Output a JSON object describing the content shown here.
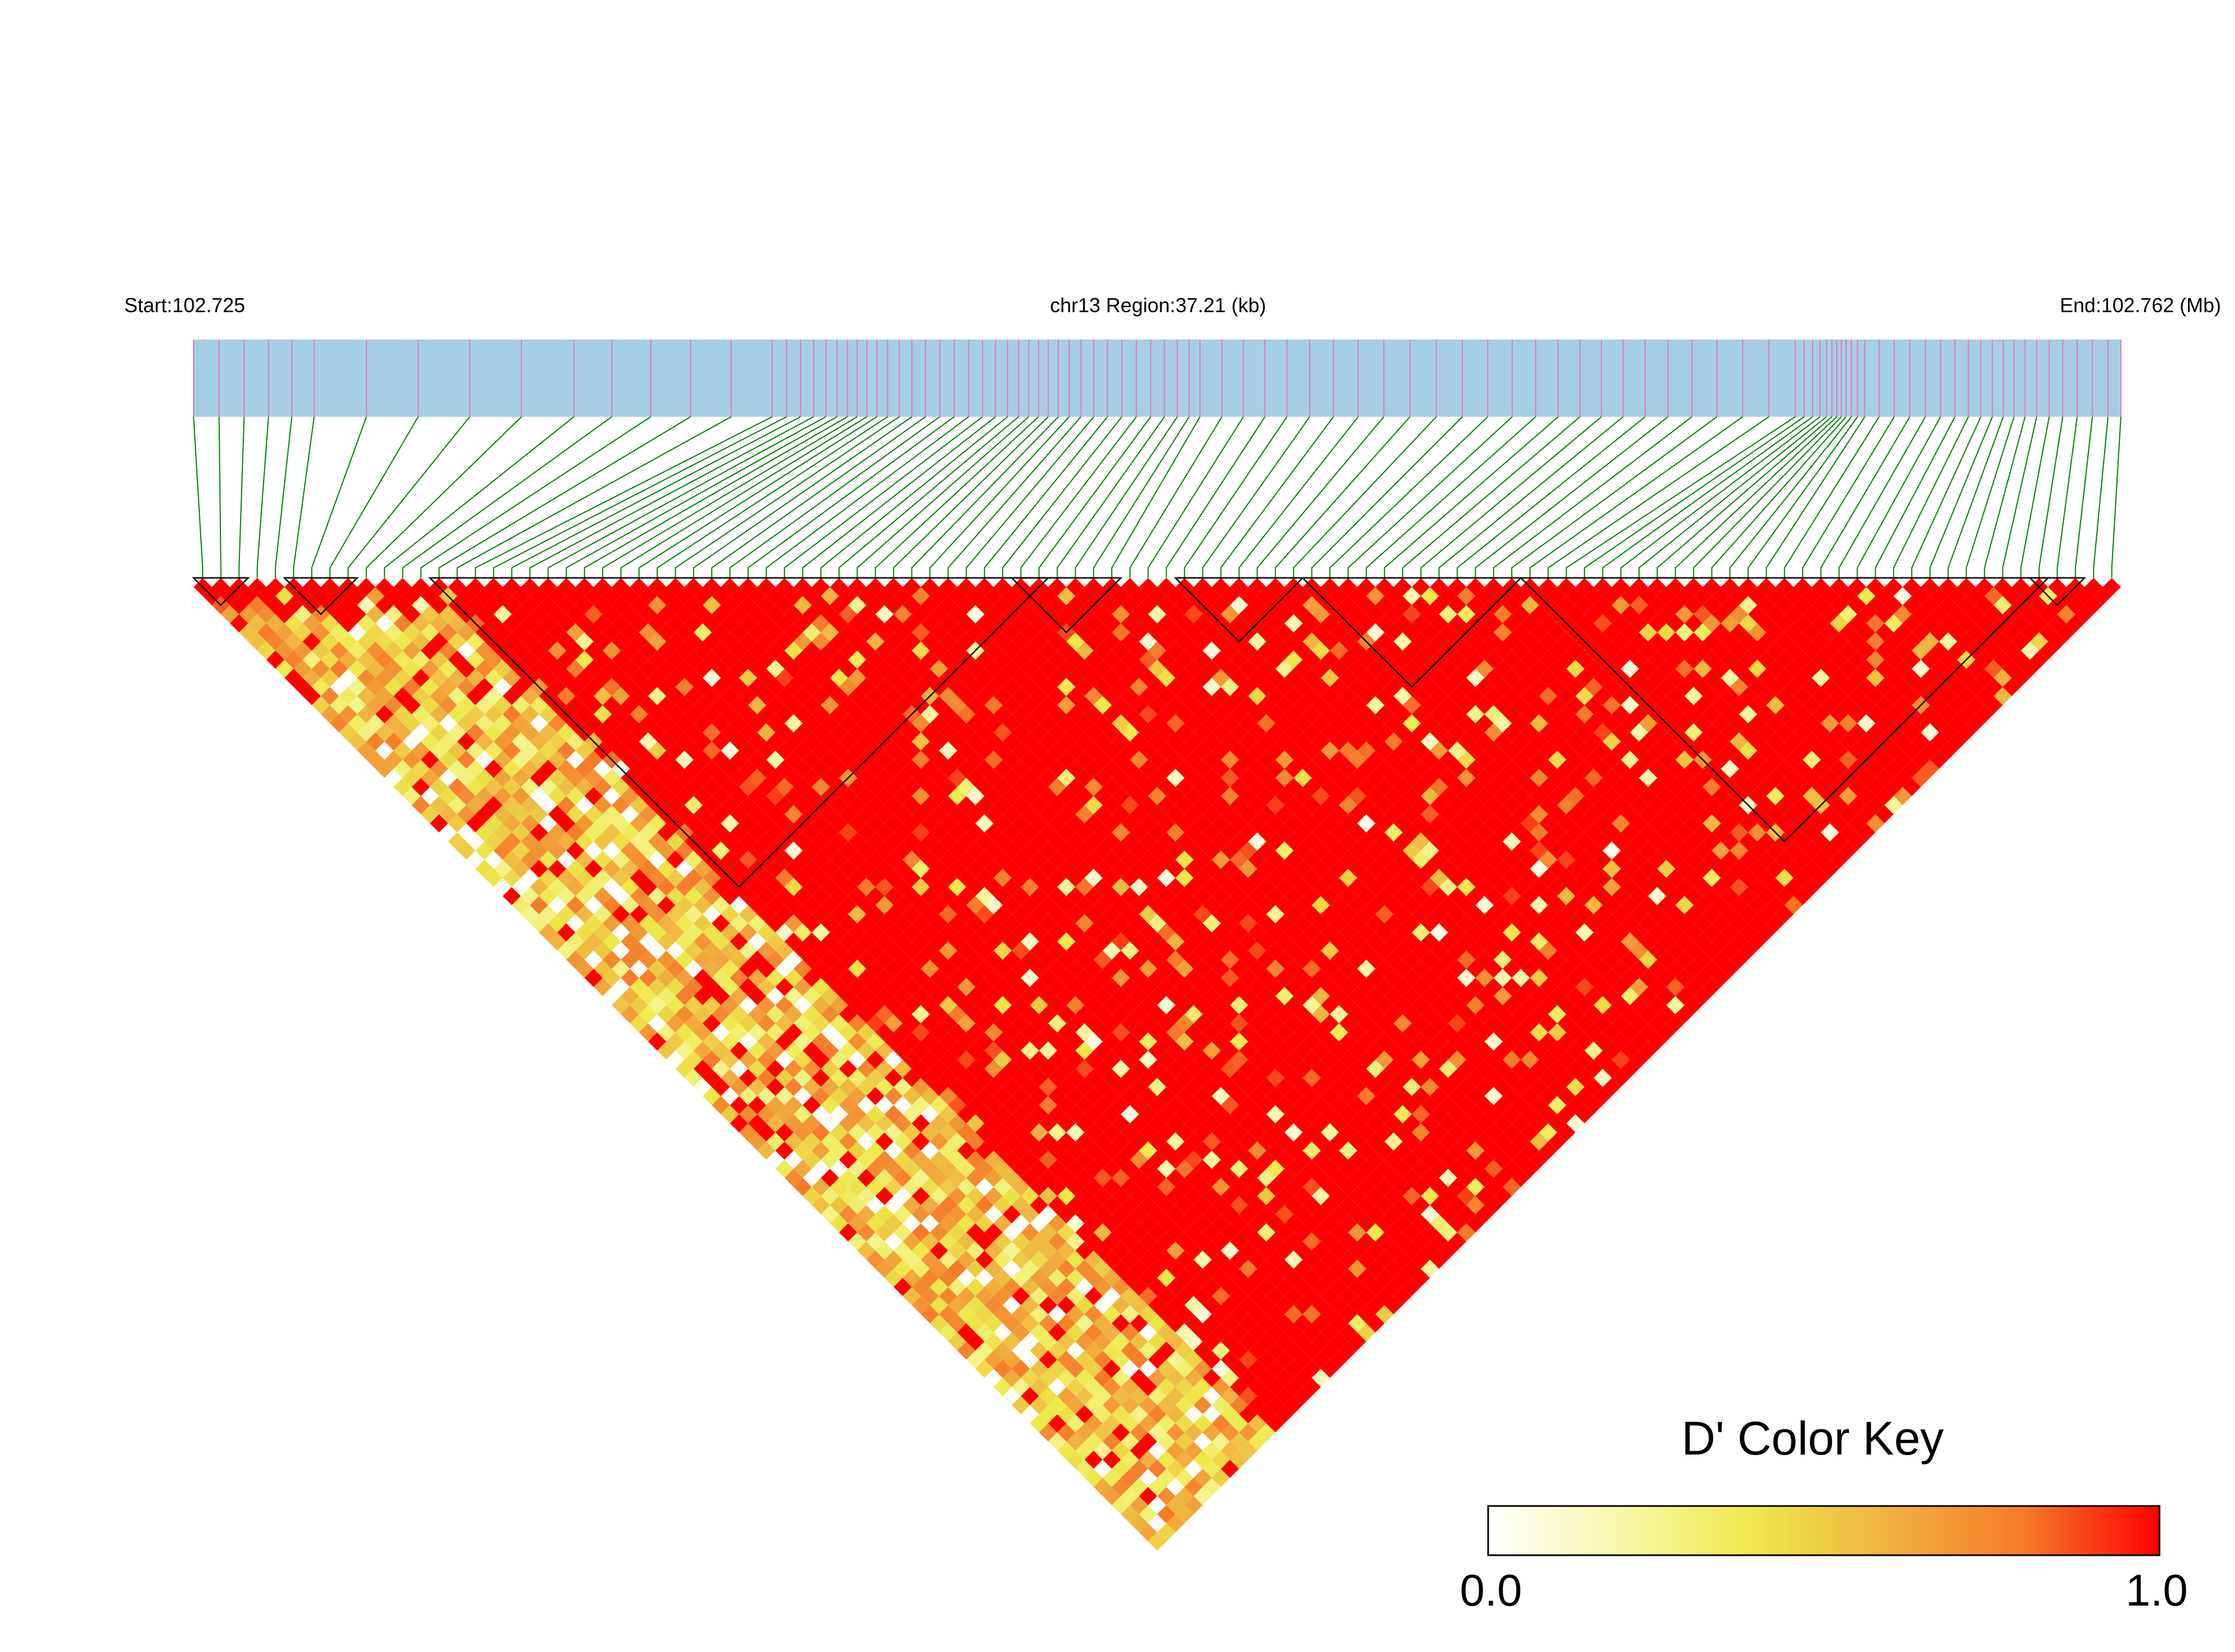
{
  "chart_data": {
    "type": "heatmap",
    "subtype": "linkage-disequilibrium-triangle",
    "start_label": "Start:102.725",
    "region_label": "chr13 Region:37.21 (kb)",
    "end_label": "End:102.762 (Mb)",
    "chromosome": "chr13",
    "region_start_mb": 102.725,
    "region_end_mb": 102.762,
    "region_length_kb": 37.21,
    "snp_count": 106,
    "color_key": {
      "title": "D' Color Key",
      "min_label": "0.0",
      "max_label": "1.0",
      "min": 0.0,
      "max": 1.0,
      "colors": [
        "#ffffff",
        "#f7f7a8",
        "#eee84a",
        "#f0b040",
        "#f57a2a",
        "#ff0000"
      ]
    },
    "overall_pattern": "Mostly strong LD (D' near 1.0, red) across the central and right SNPs; weaker LD (D' 0.2-0.7, yellow/orange) for pairs involving the leftmost SNPs; scattered low-D' cells throughout.",
    "haplotype_blocks": [
      {
        "block": 1,
        "first_snp": 1,
        "last_snp": 3
      },
      {
        "block": 2,
        "first_snp": 6,
        "last_snp": 9
      },
      {
        "block": 3,
        "first_snp": 14,
        "last_snp": 47
      },
      {
        "block": 4,
        "first_snp": 46,
        "last_snp": 51
      },
      {
        "block": 5,
        "first_snp": 55,
        "last_snp": 61
      },
      {
        "block": 6,
        "first_snp": 62,
        "last_snp": 73
      },
      {
        "block": 7,
        "first_snp": 74,
        "last_snp": 102
      },
      {
        "block": 8,
        "first_snp": 102,
        "last_snp": 104
      }
    ],
    "colors": {
      "gene_track": "#a6cee3",
      "snp_tick": "#e07ab8",
      "connector": "#008000",
      "block_outline": "#000000"
    }
  }
}
